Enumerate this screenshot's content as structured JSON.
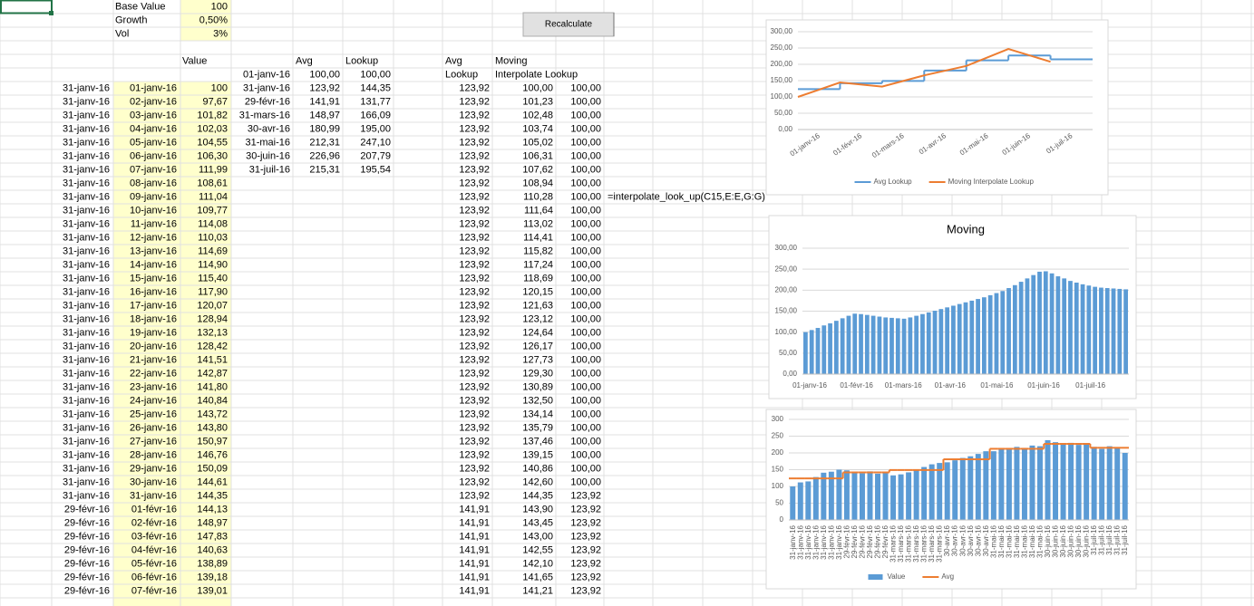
{
  "sheet": {
    "params": [
      [
        "Base Value",
        "100"
      ],
      [
        "Growth",
        "0,50%"
      ],
      [
        "Vol",
        "3%"
      ]
    ],
    "button": "Recalculate",
    "header_value": "Value",
    "lookup_header": [
      "Avg",
      "Lookup"
    ],
    "lookup": [
      [
        "01-janv-16",
        "100,00",
        "100,00"
      ],
      [
        "31-janv-16",
        "123,92",
        "144,35"
      ],
      [
        "29-févr-16",
        "141,91",
        "131,77"
      ],
      [
        "31-mars-16",
        "148,97",
        "166,09"
      ],
      [
        "30-avr-16",
        "180,99",
        "195,00"
      ],
      [
        "31-mai-16",
        "212,31",
        "247,10"
      ],
      [
        "30-juin-16",
        "226,96",
        "207,79"
      ],
      [
        "31-juil-16",
        "215,31",
        "195,54"
      ]
    ],
    "col_headers": [
      [
        "Avg",
        "Lookup"
      ],
      [
        "Moving",
        "Interpolate Lookup"
      ]
    ],
    "formula": "=interpolate_look_up(C15,E:E,G:G)",
    "rows": [
      [
        "31-janv-16",
        "01-janv-16",
        "100",
        "123,92",
        "100,00",
        "100,00"
      ],
      [
        "31-janv-16",
        "02-janv-16",
        "97,67",
        "123,92",
        "101,23",
        "100,00"
      ],
      [
        "31-janv-16",
        "03-janv-16",
        "101,82",
        "123,92",
        "102,48",
        "100,00"
      ],
      [
        "31-janv-16",
        "04-janv-16",
        "102,03",
        "123,92",
        "103,74",
        "100,00"
      ],
      [
        "31-janv-16",
        "05-janv-16",
        "104,55",
        "123,92",
        "105,02",
        "100,00"
      ],
      [
        "31-janv-16",
        "06-janv-16",
        "106,30",
        "123,92",
        "106,31",
        "100,00"
      ],
      [
        "31-janv-16",
        "07-janv-16",
        "111,99",
        "123,92",
        "107,62",
        "100,00"
      ],
      [
        "31-janv-16",
        "08-janv-16",
        "108,61",
        "123,92",
        "108,94",
        "100,00"
      ],
      [
        "31-janv-16",
        "09-janv-16",
        "111,04",
        "123,92",
        "110,28",
        "100,00"
      ],
      [
        "31-janv-16",
        "10-janv-16",
        "109,77",
        "123,92",
        "111,64",
        "100,00"
      ],
      [
        "31-janv-16",
        "11-janv-16",
        "114,08",
        "123,92",
        "113,02",
        "100,00"
      ],
      [
        "31-janv-16",
        "12-janv-16",
        "110,03",
        "123,92",
        "114,41",
        "100,00"
      ],
      [
        "31-janv-16",
        "13-janv-16",
        "114,69",
        "123,92",
        "115,82",
        "100,00"
      ],
      [
        "31-janv-16",
        "14-janv-16",
        "114,90",
        "123,92",
        "117,24",
        "100,00"
      ],
      [
        "31-janv-16",
        "15-janv-16",
        "115,40",
        "123,92",
        "118,69",
        "100,00"
      ],
      [
        "31-janv-16",
        "16-janv-16",
        "117,90",
        "123,92",
        "120,15",
        "100,00"
      ],
      [
        "31-janv-16",
        "17-janv-16",
        "120,07",
        "123,92",
        "121,63",
        "100,00"
      ],
      [
        "31-janv-16",
        "18-janv-16",
        "128,94",
        "123,92",
        "123,12",
        "100,00"
      ],
      [
        "31-janv-16",
        "19-janv-16",
        "132,13",
        "123,92",
        "124,64",
        "100,00"
      ],
      [
        "31-janv-16",
        "20-janv-16",
        "128,42",
        "123,92",
        "126,17",
        "100,00"
      ],
      [
        "31-janv-16",
        "21-janv-16",
        "141,51",
        "123,92",
        "127,73",
        "100,00"
      ],
      [
        "31-janv-16",
        "22-janv-16",
        "142,87",
        "123,92",
        "129,30",
        "100,00"
      ],
      [
        "31-janv-16",
        "23-janv-16",
        "141,80",
        "123,92",
        "130,89",
        "100,00"
      ],
      [
        "31-janv-16",
        "24-janv-16",
        "140,84",
        "123,92",
        "132,50",
        "100,00"
      ],
      [
        "31-janv-16",
        "25-janv-16",
        "143,72",
        "123,92",
        "134,14",
        "100,00"
      ],
      [
        "31-janv-16",
        "26-janv-16",
        "143,80",
        "123,92",
        "135,79",
        "100,00"
      ],
      [
        "31-janv-16",
        "27-janv-16",
        "150,97",
        "123,92",
        "137,46",
        "100,00"
      ],
      [
        "31-janv-16",
        "28-janv-16",
        "146,76",
        "123,92",
        "139,15",
        "100,00"
      ],
      [
        "31-janv-16",
        "29-janv-16",
        "150,09",
        "123,92",
        "140,86",
        "100,00"
      ],
      [
        "31-janv-16",
        "30-janv-16",
        "144,61",
        "123,92",
        "142,60",
        "100,00"
      ],
      [
        "31-janv-16",
        "31-janv-16",
        "144,35",
        "123,92",
        "144,35",
        "123,92"
      ],
      [
        "29-févr-16",
        "01-févr-16",
        "144,13",
        "141,91",
        "143,90",
        "123,92"
      ],
      [
        "29-févr-16",
        "02-févr-16",
        "148,97",
        "141,91",
        "143,45",
        "123,92"
      ],
      [
        "29-févr-16",
        "03-févr-16",
        "147,83",
        "141,91",
        "143,00",
        "123,92"
      ],
      [
        "29-févr-16",
        "04-févr-16",
        "140,63",
        "141,91",
        "142,55",
        "123,92"
      ],
      [
        "29-févr-16",
        "05-févr-16",
        "138,89",
        "141,91",
        "142,10",
        "123,92"
      ],
      [
        "29-févr-16",
        "06-févr-16",
        "139,18",
        "141,91",
        "141,65",
        "123,92"
      ],
      [
        "29-févr-16",
        "07-févr-16",
        "139,01",
        "141,91",
        "141,21",
        "123,92"
      ]
    ]
  },
  "chart_data": [
    {
      "type": "line",
      "categories": [
        "01-janv-16",
        "01-févr-16",
        "01-mars-16",
        "01-avr-16",
        "01-mai-16",
        "01-juin-16",
        "01-juil-16"
      ],
      "ylim": [
        0,
        300
      ],
      "yticks": [
        {
          "value": 0,
          "label": "0,00"
        },
        {
          "value": 50,
          "label": "50,00"
        },
        {
          "value": 100,
          "label": "100,00"
        },
        {
          "value": 150,
          "label": "150,00"
        },
        {
          "value": 200,
          "label": "200,00"
        },
        {
          "value": 250,
          "label": "250,00"
        },
        {
          "value": 300,
          "label": "300,00"
        }
      ],
      "grid": true,
      "legend": "bottom",
      "series": [
        {
          "name": "Avg Lookup",
          "color": "#5b9bd5",
          "style": "step",
          "values": [
            123.92,
            141.91,
            148.97,
            180.99,
            212.31,
            226.96,
            215.31
          ]
        },
        {
          "name": "Moving Interpolate Lookup",
          "color": "#ed7d31",
          "style": "line",
          "values": [
            100,
            144.35,
            131.77,
            166.09,
            195,
            247.1,
            207.79
          ]
        }
      ]
    },
    {
      "type": "bar",
      "title": "Moving",
      "color": "#5b9bd5",
      "x_tick_labels": [
        "01-janv-16",
        "01-févr-16",
        "01-mars-16",
        "01-avr-16",
        "01-mai-16",
        "01-juin-16",
        "01-juil-16"
      ],
      "ylim": [
        0,
        300
      ],
      "yticks": [
        {
          "value": 0,
          "label": "0,00"
        },
        {
          "value": 50,
          "label": "50,00"
        },
        {
          "value": 100,
          "label": "100,00"
        },
        {
          "value": 150,
          "label": "150,00"
        },
        {
          "value": 200,
          "label": "200,00"
        },
        {
          "value": 250,
          "label": "250,00"
        },
        {
          "value": 300,
          "label": "300,00"
        }
      ],
      "grid": true,
      "values": [
        100,
        105,
        110,
        116,
        121,
        127,
        133,
        139,
        144,
        143,
        141,
        139,
        137,
        135,
        134,
        133,
        132,
        135,
        139,
        143,
        147,
        151,
        155,
        159,
        163,
        167,
        171,
        175,
        179,
        183,
        188,
        193,
        198,
        205,
        212,
        220,
        228,
        236,
        244,
        245,
        240,
        233,
        228,
        222,
        218,
        214,
        211,
        208,
        206,
        205,
        204,
        203,
        202
      ]
    },
    {
      "type": "bar",
      "categories": [
        "31-janv-16",
        "31-janv-16",
        "31-janv-16",
        "31-janv-16",
        "31-janv-16",
        "31-janv-16",
        "31-janv-16",
        "29-févr-16",
        "29-févr-16",
        "29-févr-16",
        "29-févr-16",
        "29-févr-16",
        "29-févr-16",
        "31-mars-16",
        "31-mars-16",
        "31-mars-16",
        "31-mars-16",
        "31-mars-16",
        "31-mars-16",
        "31-mars-16",
        "30-avr-16",
        "30-avr-16",
        "30-avr-16",
        "30-avr-16",
        "30-avr-16",
        "30-avr-16",
        "31-mai-16",
        "31-mai-16",
        "31-mai-16",
        "31-mai-16",
        "31-mai-16",
        "31-mai-16",
        "31-mai-16",
        "30-juin-16",
        "30-juin-16",
        "30-juin-16",
        "30-juin-16",
        "30-juin-16",
        "30-juin-16",
        "31-juil-16",
        "31-juil-16",
        "31-juil-16",
        "31-juil-16",
        "31-juil-16"
      ],
      "ylim": [
        0,
        300
      ],
      "yticks": [
        0,
        50,
        100,
        150,
        200,
        250,
        300
      ],
      "grid": true,
      "legend": "bottom",
      "series": [
        {
          "name": "Value",
          "color": "#5b9bd5",
          "style": "bar",
          "values": [
            100,
            112,
            115,
            128,
            141,
            144,
            150,
            148,
            141,
            139,
            145,
            138,
            143,
            133,
            136,
            142,
            150,
            158,
            166,
            170,
            172,
            178,
            185,
            190,
            197,
            205,
            205,
            212,
            210,
            218,
            215,
            222,
            220,
            238,
            232,
            228,
            230,
            224,
            226,
            218,
            212,
            220,
            214,
            200
          ]
        },
        {
          "name": "Avg",
          "color": "#ed7d31",
          "style": "step",
          "values": [
            123.92,
            123.92,
            123.92,
            123.92,
            123.92,
            123.92,
            123.92,
            141.91,
            141.91,
            141.91,
            141.91,
            141.91,
            141.91,
            148.97,
            148.97,
            148.97,
            148.97,
            148.97,
            148.97,
            148.97,
            180.99,
            180.99,
            180.99,
            180.99,
            180.99,
            180.99,
            212.31,
            212.31,
            212.31,
            212.31,
            212.31,
            212.31,
            212.31,
            226.96,
            226.96,
            226.96,
            226.96,
            226.96,
            226.96,
            215.31,
            215.31,
            215.31,
            215.31,
            215.31
          ]
        }
      ]
    }
  ]
}
